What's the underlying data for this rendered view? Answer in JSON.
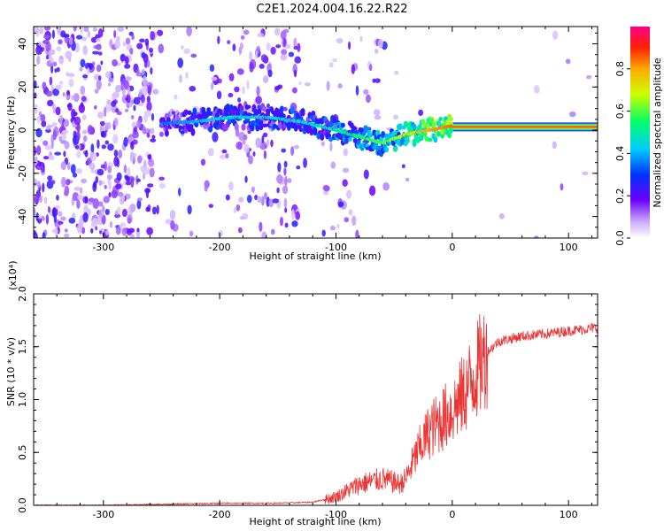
{
  "title": "C2E1.2024.004.16.22.R22",
  "colors": {
    "snr_line": "#ee3333",
    "spectrogram_low": "#6a00ff",
    "axis": "#000000"
  },
  "chart_data": [
    {
      "type": "heatmap",
      "xlabel": "Height of straight line (km)",
      "ylabel": "Frequency (Hz)",
      "xlim": [
        -360,
        125
      ],
      "ylim": [
        -50,
        48
      ],
      "xticks": [
        -300,
        -200,
        -100,
        0,
        100
      ],
      "yticks": [
        -40,
        -20,
        0,
        20,
        40
      ],
      "colorbar": {
        "label": "Normalized spectral amplitude",
        "range": [
          0,
          1
        ],
        "ticks": [
          0.0,
          0.2,
          0.4,
          0.6,
          0.8
        ],
        "colormap": "rainbow"
      },
      "signal_track": [
        {
          "x": -250,
          "y": 3,
          "amp": 0.35
        },
        {
          "x": -220,
          "y": 4,
          "amp": 0.4
        },
        {
          "x": -190,
          "y": 6,
          "amp": 0.45
        },
        {
          "x": -160,
          "y": 6,
          "amp": 0.45
        },
        {
          "x": -130,
          "y": 4,
          "amp": 0.45
        },
        {
          "x": -100,
          "y": 0,
          "amp": 0.5
        },
        {
          "x": -80,
          "y": -3,
          "amp": 0.55
        },
        {
          "x": -60,
          "y": -6,
          "amp": 0.6
        },
        {
          "x": -40,
          "y": -2,
          "amp": 0.7
        },
        {
          "x": -20,
          "y": 0,
          "amp": 0.8
        },
        {
          "x": 0,
          "y": 2,
          "amp": 0.85
        },
        {
          "x": 50,
          "y": 1.5,
          "amp": 0.85
        },
        {
          "x": 125,
          "y": 1.5,
          "amp": 0.85
        }
      ]
    },
    {
      "type": "line",
      "xlabel": "Height of straight line (km)",
      "ylabel": "SNR (10 * v/v)",
      "y_multiplier": "(x10⁴)",
      "xlim": [
        -360,
        125
      ],
      "ylim": [
        0,
        2.0
      ],
      "xticks": [
        -300,
        -200,
        -100,
        0,
        100
      ],
      "yticks": [
        0.0,
        0.5,
        1.0,
        1.5,
        2.0
      ],
      "series": [
        {
          "x": [
            -360,
            -300,
            -250,
            -200,
            -150,
            -120,
            -100,
            -80,
            -60,
            -45,
            -40,
            -30,
            -20,
            -10,
            0,
            10,
            20,
            30,
            40,
            60,
            80,
            100,
            125
          ],
          "y": [
            0.0,
            0.0,
            0.01,
            0.02,
            0.02,
            0.03,
            0.08,
            0.2,
            0.25,
            0.2,
            0.25,
            0.5,
            0.7,
            0.8,
            0.9,
            1.05,
            1.25,
            1.45,
            1.55,
            1.6,
            1.62,
            1.65,
            1.68
          ]
        }
      ]
    }
  ]
}
